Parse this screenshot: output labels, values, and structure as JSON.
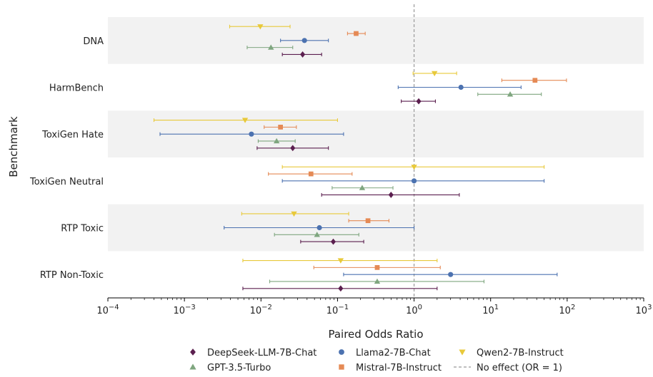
{
  "chart_data": {
    "type": "forest",
    "xlabel": "Paired Odds Ratio",
    "ylabel": "Benchmark",
    "xscale": "log",
    "xlim": [
      0.0001,
      1000
    ],
    "xticks": [
      {
        "value": 0.0001,
        "base": "10",
        "exp": "−4"
      },
      {
        "value": 0.001,
        "base": "10",
        "exp": "−3"
      },
      {
        "value": 0.01,
        "base": "10",
        "exp": "−2"
      },
      {
        "value": 0.1,
        "base": "10",
        "exp": "−1"
      },
      {
        "value": 1,
        "base": "10",
        "exp": "0"
      },
      {
        "value": 10,
        "base": "10",
        "exp": "1"
      },
      {
        "value": 100,
        "base": "10",
        "exp": "2"
      },
      {
        "value": 1000,
        "base": "10",
        "exp": "3"
      }
    ],
    "reference_line": {
      "value": 1,
      "label": "No effect (OR = 1)",
      "color": "#999999"
    },
    "categories": [
      "DNA",
      "HarmBench",
      "ToxiGen Hate",
      "ToxiGen Neutral",
      "RTP Toxic",
      "RTP Non-Toxic"
    ],
    "series": [
      {
        "name": "Qwen2-7B-Instruct",
        "color": "#e8c93a",
        "marker": "triangle-down",
        "points": [
          {
            "or": 0.0098,
            "lo": 0.0039,
            "hi": 0.024
          },
          {
            "or": 1.85,
            "lo": 0.97,
            "hi": 3.6
          },
          {
            "or": 0.0062,
            "lo": 0.0004,
            "hi": 0.1
          },
          {
            "or": 1.0,
            "lo": 0.019,
            "hi": 50
          },
          {
            "or": 0.027,
            "lo": 0.0056,
            "hi": 0.14
          },
          {
            "or": 0.11,
            "lo": 0.0058,
            "hi": 2.0
          }
        ]
      },
      {
        "name": "Mistral-7B-Instruct",
        "color": "#e58a55",
        "marker": "square",
        "points": [
          {
            "or": 0.175,
            "lo": 0.135,
            "hi": 0.23
          },
          {
            "or": 38,
            "lo": 14,
            "hi": 98
          },
          {
            "or": 0.018,
            "lo": 0.011,
            "hi": 0.029
          },
          {
            "or": 0.045,
            "lo": 0.0125,
            "hi": 0.155
          },
          {
            "or": 0.25,
            "lo": 0.14,
            "hi": 0.47
          },
          {
            "or": 0.33,
            "lo": 0.049,
            "hi": 2.2
          }
        ]
      },
      {
        "name": "Llama2-7B-Chat",
        "color": "#4c72b0",
        "marker": "circle",
        "points": [
          {
            "or": 0.037,
            "lo": 0.018,
            "hi": 0.076
          },
          {
            "or": 4.1,
            "lo": 0.62,
            "hi": 25
          },
          {
            "or": 0.0075,
            "lo": 0.00048,
            "hi": 0.12
          },
          {
            "or": 1.0,
            "lo": 0.019,
            "hi": 50
          },
          {
            "or": 0.058,
            "lo": 0.0033,
            "hi": 1.0
          },
          {
            "or": 3.0,
            "lo": 0.12,
            "hi": 74
          }
        ]
      },
      {
        "name": "GPT-3.5-Turbo",
        "color": "#7fa67f",
        "marker": "triangle-up",
        "points": [
          {
            "or": 0.0135,
            "lo": 0.0066,
            "hi": 0.026
          },
          {
            "or": 18,
            "lo": 6.8,
            "hi": 46
          },
          {
            "or": 0.016,
            "lo": 0.0092,
            "hi": 0.028
          },
          {
            "or": 0.21,
            "lo": 0.085,
            "hi": 0.53
          },
          {
            "or": 0.054,
            "lo": 0.015,
            "hi": 0.19
          },
          {
            "or": 0.33,
            "lo": 0.013,
            "hi": 8.2
          }
        ]
      },
      {
        "name": "DeepSeek-LLM-7B-Chat",
        "color": "#5b1f4f",
        "marker": "diamond",
        "points": [
          {
            "or": 0.035,
            "lo": 0.019,
            "hi": 0.062
          },
          {
            "or": 1.15,
            "lo": 0.68,
            "hi": 1.9
          },
          {
            "or": 0.026,
            "lo": 0.0089,
            "hi": 0.076
          },
          {
            "or": 0.5,
            "lo": 0.062,
            "hi": 3.9
          },
          {
            "or": 0.088,
            "lo": 0.033,
            "hi": 0.22
          },
          {
            "or": 0.11,
            "lo": 0.0058,
            "hi": 2.0
          }
        ]
      }
    ],
    "legend": {
      "position": "bottom",
      "order": [
        "DeepSeek-LLM-7B-Chat",
        "Llama2-7B-Chat",
        "Qwen2-7B-Instruct",
        "GPT-3.5-Turbo",
        "Mistral-7B-Instruct",
        "No effect (OR = 1)"
      ]
    },
    "band_color": "#f2f2f2"
  }
}
